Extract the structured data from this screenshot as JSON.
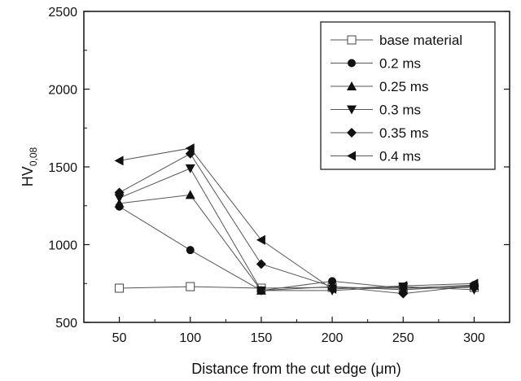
{
  "chart_data": {
    "type": "line",
    "title": "",
    "xlabel": "Distance from the cut edge (μm)",
    "ylabel_main": "HV",
    "ylabel_sub": "0,08",
    "x": [
      50,
      100,
      150,
      200,
      250,
      300
    ],
    "x_ticks": [
      "50",
      "100",
      "150",
      "200",
      "250",
      "300"
    ],
    "y_ticks": [
      "500",
      "1000",
      "1500",
      "2000",
      "2500"
    ],
    "xlim": [
      25,
      325
    ],
    "ylim": [
      500,
      2500
    ],
    "grid": false,
    "legend_position": "top-right",
    "series": [
      {
        "name": "base material",
        "marker": "square-open",
        "values": [
          720,
          730,
          720,
          725,
          720,
          725
        ]
      },
      {
        "name": "0.2 ms",
        "marker": "circle",
        "values": [
          1245,
          965,
          705,
          765,
          720,
          740
        ]
      },
      {
        "name": "0.25 ms",
        "marker": "triangle-up",
        "values": [
          1265,
          1320,
          705,
          730,
          710,
          735
        ]
      },
      {
        "name": "0.3 ms",
        "marker": "triangle-down",
        "values": [
          1300,
          1490,
          705,
          705,
          730,
          710
        ]
      },
      {
        "name": "0.35 ms",
        "marker": "diamond",
        "values": [
          1335,
          1585,
          875,
          730,
          685,
          735
        ]
      },
      {
        "name": "0.4 ms",
        "marker": "triangle-left",
        "values": [
          1540,
          1620,
          1030,
          715,
          735,
          750
        ]
      }
    ]
  }
}
